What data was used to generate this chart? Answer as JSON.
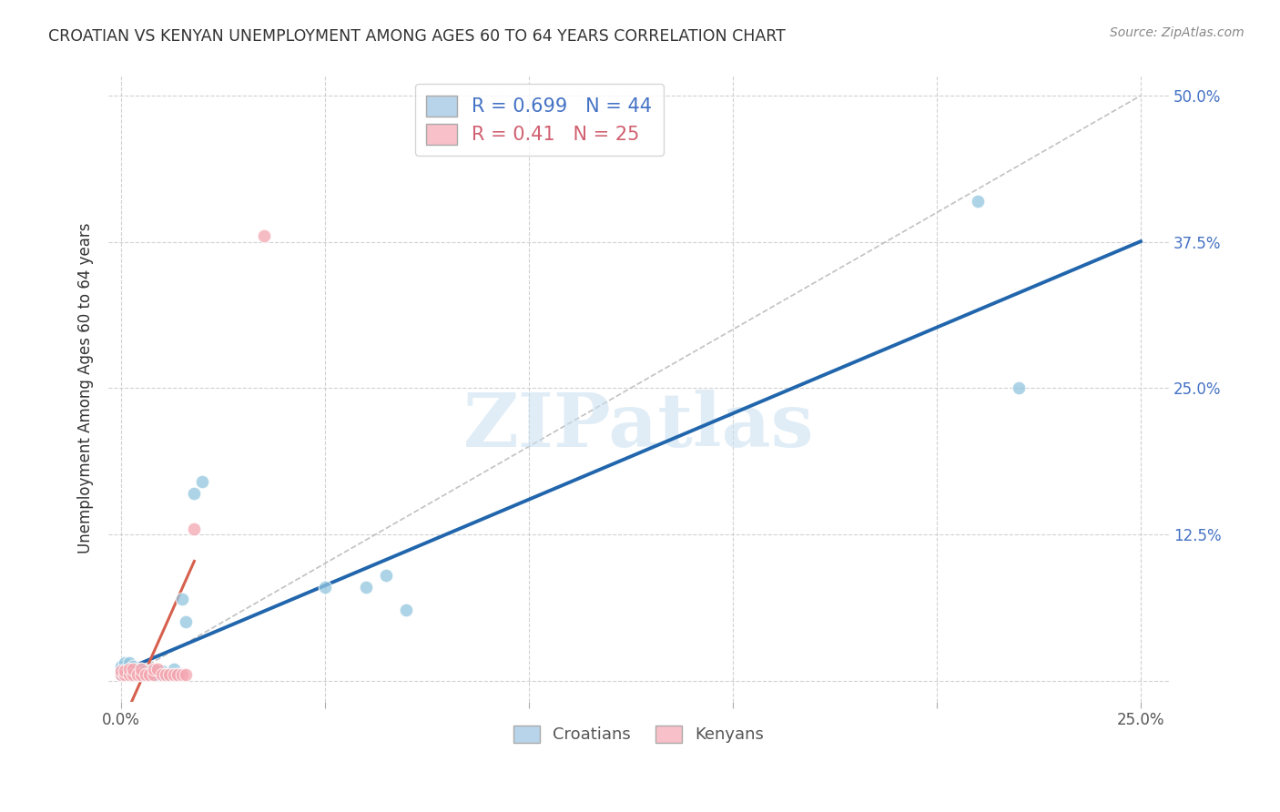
{
  "title": "CROATIAN VS KENYAN UNEMPLOYMENT AMONG AGES 60 TO 64 YEARS CORRELATION CHART",
  "source": "Source: ZipAtlas.com",
  "ylabel": "Unemployment Among Ages 60 to 64 years",
  "xlim": [
    0.0,
    0.25
  ],
  "ylim": [
    0.0,
    0.5
  ],
  "xtick_vals": [
    0.0,
    0.05,
    0.1,
    0.15,
    0.2,
    0.25
  ],
  "xtick_labels": [
    "0.0%",
    "",
    "",
    "",
    "",
    "25.0%"
  ],
  "ytick_vals": [
    0.0,
    0.125,
    0.25,
    0.375,
    0.5
  ],
  "ytick_labels": [
    "",
    "12.5%",
    "25.0%",
    "37.5%",
    "50.0%"
  ],
  "croatian_R": 0.699,
  "croatian_N": 44,
  "kenyan_R": 0.41,
  "kenyan_N": 25,
  "croatian_color": "#92c5de",
  "kenyan_color": "#f4a6b0",
  "croatian_line_color": "#2166ac",
  "kenyan_line_color": "#d6604d",
  "diagonal_color": "#bbbbbb",
  "croatian_x": [
    0.0,
    0.0,
    0.0,
    0.001,
    0.001,
    0.001,
    0.001,
    0.002,
    0.002,
    0.002,
    0.002,
    0.003,
    0.003,
    0.003,
    0.003,
    0.004,
    0.004,
    0.004,
    0.005,
    0.005,
    0.005,
    0.006,
    0.006,
    0.007,
    0.007,
    0.008,
    0.008,
    0.009,
    0.01,
    0.01,
    0.011,
    0.012,
    0.013,
    0.014,
    0.015,
    0.016,
    0.018,
    0.02,
    0.05,
    0.06,
    0.065,
    0.07,
    0.21,
    0.22
  ],
  "croatian_y": [
    0.005,
    0.008,
    0.012,
    0.005,
    0.008,
    0.01,
    0.015,
    0.005,
    0.008,
    0.01,
    0.015,
    0.005,
    0.007,
    0.01,
    0.012,
    0.005,
    0.008,
    0.01,
    0.005,
    0.008,
    0.01,
    0.005,
    0.008,
    0.005,
    0.008,
    0.005,
    0.008,
    0.005,
    0.005,
    0.008,
    0.005,
    0.005,
    0.01,
    0.005,
    0.07,
    0.05,
    0.16,
    0.17,
    0.08,
    0.08,
    0.09,
    0.06,
    0.41,
    0.25
  ],
  "kenyan_x": [
    0.0,
    0.0,
    0.001,
    0.001,
    0.002,
    0.002,
    0.003,
    0.003,
    0.004,
    0.005,
    0.005,
    0.006,
    0.007,
    0.008,
    0.008,
    0.009,
    0.01,
    0.011,
    0.012,
    0.013,
    0.014,
    0.015,
    0.016,
    0.018,
    0.035
  ],
  "kenyan_y": [
    0.005,
    0.008,
    0.005,
    0.008,
    0.005,
    0.01,
    0.005,
    0.01,
    0.005,
    0.005,
    0.01,
    0.005,
    0.005,
    0.005,
    0.01,
    0.01,
    0.005,
    0.005,
    0.005,
    0.005,
    0.005,
    0.005,
    0.005,
    0.13,
    0.38
  ],
  "watermark_text": "ZIPatlas",
  "watermark_color": "#c8dff0",
  "background_color": "#ffffff",
  "grid_color": "#cccccc"
}
